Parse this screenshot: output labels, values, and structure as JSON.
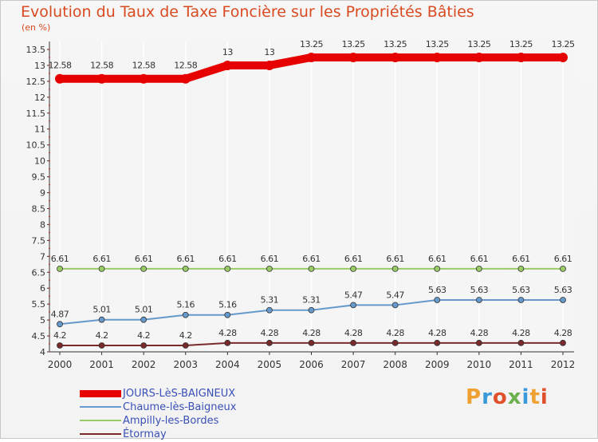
{
  "title": "Evolution du Taux de Taxe Foncière sur les Propriétés Bâties",
  "unit_label": "(en %)",
  "chart_data": {
    "type": "line",
    "title": "Evolution du Taux de Taxe Foncière sur les Propriétés Bâties",
    "ylabel": "(en %)",
    "xlabel": "",
    "x": [
      "2000",
      "2001",
      "2002",
      "2003",
      "2004",
      "2005",
      "2006",
      "2007",
      "2008",
      "2009",
      "2010",
      "2011",
      "2012"
    ],
    "ylim": [
      4,
      13.5
    ],
    "yticks": [
      "4",
      "4.5",
      "5",
      "5.5",
      "6",
      "6.5",
      "7",
      "7.5",
      "8",
      "8.5",
      "9",
      "9.5",
      "10",
      "10.5",
      "11",
      "11.5",
      "12",
      "12.5",
      "13",
      "13.5"
    ],
    "series": [
      {
        "name": "JOURS-LèS-BAIGNEUX",
        "color": "#e60000",
        "values": [
          12.58,
          12.58,
          12.58,
          12.58,
          13,
          13,
          13.25,
          13.25,
          13.25,
          13.25,
          13.25,
          13.25,
          13.25
        ],
        "labels": [
          "12.58",
          "12.58",
          "12.58",
          "12.58",
          "13",
          "13",
          "13.25",
          "13.25",
          "13.25",
          "13.25",
          "13.25",
          "13.25",
          "13.25"
        ]
      },
      {
        "name": "Chaume-lès-Baigneux",
        "color": "#6699cc",
        "values": [
          4.87,
          5.01,
          5.01,
          5.16,
          5.16,
          5.31,
          5.31,
          5.47,
          5.47,
          5.63,
          5.63,
          5.63,
          5.63
        ],
        "labels": [
          "4.87",
          "5.01",
          "5.01",
          "5.16",
          "5.16",
          "5.31",
          "5.31",
          "5.47",
          "5.47",
          "5.63",
          "5.63",
          "5.63",
          "5.63"
        ]
      },
      {
        "name": "Ampilly-les-Bordes",
        "color": "#99cc66",
        "values": [
          6.61,
          6.61,
          6.61,
          6.61,
          6.61,
          6.61,
          6.61,
          6.61,
          6.61,
          6.61,
          6.61,
          6.61,
          6.61
        ],
        "labels": [
          "6.61",
          "6.61",
          "6.61",
          "6.61",
          "6.61",
          "6.61",
          "6.61",
          "6.61",
          "6.61",
          "6.61",
          "6.61",
          "6.61",
          "6.61"
        ]
      },
      {
        "name": "Étormay",
        "color": "#7a2a2a",
        "values": [
          4.2,
          4.2,
          4.2,
          4.2,
          4.28,
          4.28,
          4.28,
          4.28,
          4.28,
          4.28,
          4.28,
          4.28,
          4.28
        ],
        "labels": [
          "4.2",
          "4.2",
          "4.2",
          "4.2",
          "4.28",
          "4.28",
          "4.28",
          "4.28",
          "4.28",
          "4.28",
          "4.28",
          "4.28",
          "4.28"
        ]
      }
    ],
    "legend_position": "bottom-left"
  },
  "legend": {
    "items": [
      "JOURS-LèS-BAIGNEUX",
      "Chaume-lès-Baigneux",
      "Ampilly-les-Bordes",
      "Étormay"
    ]
  },
  "logo": {
    "text": "Proxiti",
    "colors": [
      "#f0a030",
      "#3a9ad9",
      "#e0502a",
      "#6ab04c",
      "#3a9ad9",
      "#f0a030",
      "#e0502a"
    ]
  }
}
